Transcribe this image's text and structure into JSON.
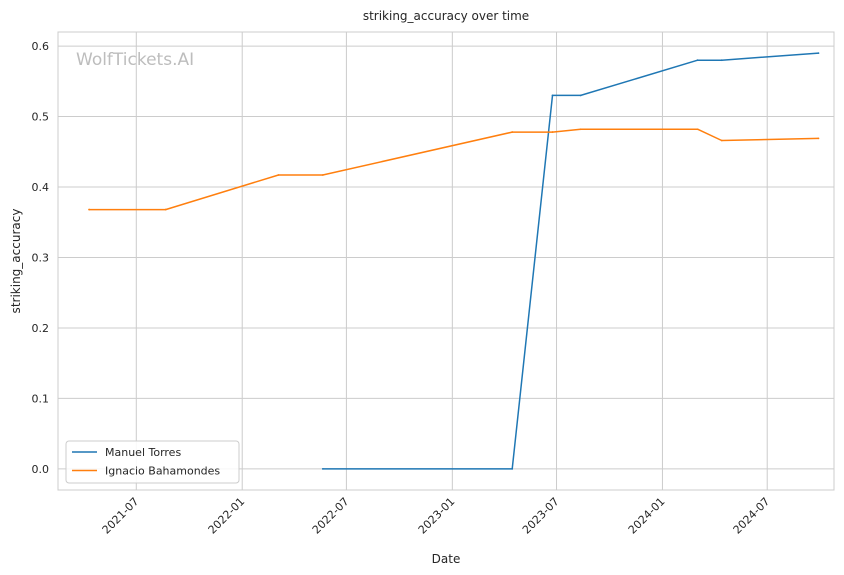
{
  "chart_data": {
    "type": "line",
    "title": "striking_accuracy over time",
    "xlabel": "Date",
    "ylabel": "striking_accuracy",
    "watermark": "WolfTickets.AI",
    "xlim": [
      "2021-02-15",
      "2024-10-25"
    ],
    "ylim": [
      -0.03,
      0.62
    ],
    "x_ticks": [
      "2021-07",
      "2022-01",
      "2022-07",
      "2023-01",
      "2023-07",
      "2024-01",
      "2024-07"
    ],
    "y_ticks": [
      0.0,
      0.1,
      0.2,
      0.3,
      0.4,
      0.5,
      0.6
    ],
    "y_tick_labels": [
      "0.0",
      "0.1",
      "0.2",
      "0.3",
      "0.4",
      "0.5",
      "0.6"
    ],
    "grid": true,
    "legend_position": "lower-left",
    "series": [
      {
        "name": "Manuel Torres",
        "color": "#1f77b4",
        "points": [
          {
            "x": "2022-05-21",
            "y": 0.0
          },
          {
            "x": "2023-04-15",
            "y": 0.0
          },
          {
            "x": "2023-06-24",
            "y": 0.53
          },
          {
            "x": "2023-08-12",
            "y": 0.53
          },
          {
            "x": "2024-03-02",
            "y": 0.58
          },
          {
            "x": "2024-04-13",
            "y": 0.58
          },
          {
            "x": "2024-09-28",
            "y": 0.59
          }
        ]
      },
      {
        "name": "Ignacio Bahamondes",
        "color": "#ff7f0e",
        "points": [
          {
            "x": "2021-04-10",
            "y": 0.368
          },
          {
            "x": "2021-08-21",
            "y": 0.368
          },
          {
            "x": "2022-03-05",
            "y": 0.417
          },
          {
            "x": "2022-05-21",
            "y": 0.417
          },
          {
            "x": "2023-04-15",
            "y": 0.478
          },
          {
            "x": "2023-06-24",
            "y": 0.478
          },
          {
            "x": "2023-08-12",
            "y": 0.482
          },
          {
            "x": "2024-03-02",
            "y": 0.482
          },
          {
            "x": "2024-04-13",
            "y": 0.466
          },
          {
            "x": "2024-09-28",
            "y": 0.469
          }
        ]
      }
    ]
  }
}
